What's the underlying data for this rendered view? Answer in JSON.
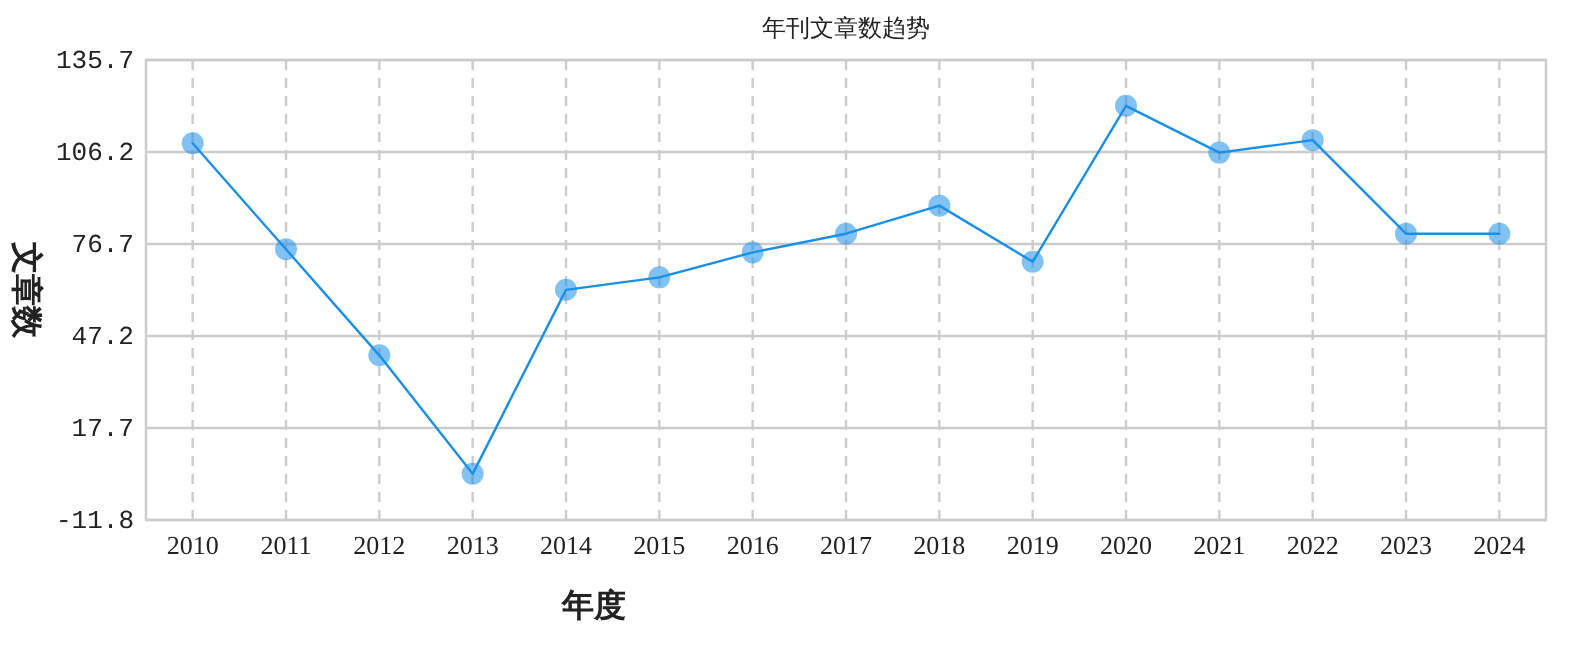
{
  "chart_data": {
    "type": "line",
    "title": "年刊文章数趋势",
    "xlabel": "年度",
    "ylabel": "文章数",
    "categories": [
      "2010",
      "2011",
      "2012",
      "2013",
      "2014",
      "2015",
      "2016",
      "2017",
      "2018",
      "2019",
      "2020",
      "2021",
      "2022",
      "2023",
      "2024"
    ],
    "series": [
      {
        "color": "#1a8fe8",
        "values": [
          109,
          75,
          41,
          3,
          62,
          66,
          74,
          80,
          89,
          71,
          121,
          106,
          110,
          80,
          80
        ]
      }
    ],
    "ylim": [
      -11.8,
      135.7
    ],
    "yticks": [
      -11.8,
      17.7,
      47.2,
      76.7,
      106.2,
      135.7
    ],
    "grid": true,
    "marker": "circle",
    "line_style": "solid"
  }
}
